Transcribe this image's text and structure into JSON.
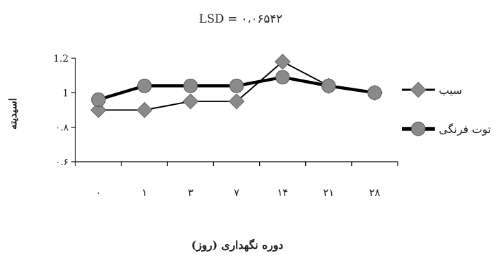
{
  "chart_data": {
    "type": "line",
    "title": "LSD = ۰،۰۶۵۴۲",
    "xlabel": "دوره نگهداری (روز)",
    "ylabel": "اسیدیته",
    "categories": [
      "۰",
      "۱",
      "۳",
      "۷",
      "۱۴",
      "۲۱",
      "۲۸"
    ],
    "y_ticks": [
      "۰.۶",
      "۰.۸",
      "1",
      "1.2"
    ],
    "y_tick_values": [
      0.6,
      0.8,
      1.0,
      1.2
    ],
    "ylim": [
      0.6,
      1.2
    ],
    "grid": false,
    "legend_position": "right",
    "series": [
      {
        "name": "سیب",
        "marker": "diamond",
        "values": [
          0.9,
          0.9,
          0.95,
          0.95,
          1.18,
          1.04,
          1.0
        ],
        "line_color": "#000000",
        "marker_color": "#8a8a8a"
      },
      {
        "name": "توت فرنگی",
        "marker": "circle",
        "values": [
          0.96,
          1.04,
          1.04,
          1.04,
          1.09,
          1.04,
          1.0
        ],
        "line_color": "#000000",
        "marker_color": "#8a8a8a"
      }
    ]
  }
}
